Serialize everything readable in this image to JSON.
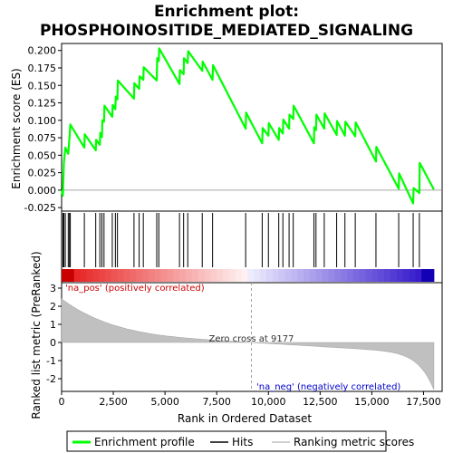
{
  "chart_data": {
    "type": "line",
    "title_line1": "Enrichment plot:",
    "title_line2": "PHOSPHOINOSITIDE_MEDIATED_SIGNALING",
    "xlabel": "Rank in Ordered Dataset",
    "ylabel_top": "Enrichment score (ES)",
    "ylabel_bottom": "Ranked list metric (PreRanked)",
    "xlim": [
      0,
      18400
    ],
    "es_ylim": [
      -0.03,
      0.21
    ],
    "metric_ylim": [
      -2.7,
      3.3
    ],
    "x_ticks": [
      0,
      2500,
      5000,
      7500,
      10000,
      12500,
      15000,
      17500
    ],
    "x_tick_labels": [
      "0",
      "2,500",
      "5,000",
      "7,500",
      "10,000",
      "12,500",
      "15,000",
      "17,500"
    ],
    "es_ticks": [
      -0.025,
      0.0,
      0.025,
      0.05,
      0.075,
      0.1,
      0.125,
      0.15,
      0.175,
      0.2
    ],
    "es_tick_labels": [
      "-0.025",
      "0.000",
      "0.025",
      "0.050",
      "0.075",
      "0.100",
      "0.125",
      "0.150",
      "0.175",
      "0.200"
    ],
    "metric_ticks": [
      -2,
      -1,
      0,
      1,
      2,
      3
    ],
    "metric_tick_labels": [
      "-2",
      "-1",
      "0",
      "1",
      "2",
      "3"
    ],
    "hits": [
      60,
      110,
      180,
      320,
      380,
      420,
      1100,
      1650,
      1850,
      1950,
      2050,
      2450,
      2600,
      2700,
      3500,
      3750,
      3950,
      4600,
      4700,
      5700,
      5900,
      6100,
      6800,
      7300,
      8900,
      9700,
      10000,
      10500,
      10700,
      11000,
      11200,
      12200,
      12300,
      12700,
      13300,
      13700,
      14200,
      15200,
      16300,
      17000,
      17300
    ],
    "es_points": [
      [
        0,
        0.0
      ],
      [
        60,
        -0.008
      ],
      [
        110,
        0.039
      ],
      [
        180,
        0.061
      ],
      [
        320,
        0.052
      ],
      [
        380,
        0.075
      ],
      [
        420,
        0.094
      ],
      [
        1100,
        0.061
      ],
      [
        1120,
        0.08
      ],
      [
        1650,
        0.057
      ],
      [
        1670,
        0.072
      ],
      [
        1850,
        0.065
      ],
      [
        1870,
        0.082
      ],
      [
        1950,
        0.076
      ],
      [
        1970,
        0.1
      ],
      [
        2050,
        0.098
      ],
      [
        2070,
        0.121
      ],
      [
        2450,
        0.105
      ],
      [
        2470,
        0.122
      ],
      [
        2600,
        0.116
      ],
      [
        2620,
        0.134
      ],
      [
        2700,
        0.13
      ],
      [
        2720,
        0.157
      ],
      [
        3500,
        0.131
      ],
      [
        3520,
        0.153
      ],
      [
        3750,
        0.145
      ],
      [
        3770,
        0.163
      ],
      [
        3950,
        0.158
      ],
      [
        3970,
        0.176
      ],
      [
        4600,
        0.157
      ],
      [
        4620,
        0.189
      ],
      [
        4700,
        0.185
      ],
      [
        4720,
        0.203
      ],
      [
        5700,
        0.152
      ],
      [
        5720,
        0.172
      ],
      [
        5900,
        0.166
      ],
      [
        5920,
        0.189
      ],
      [
        6100,
        0.182
      ],
      [
        6120,
        0.199
      ],
      [
        6800,
        0.171
      ],
      [
        6820,
        0.184
      ],
      [
        7300,
        0.158
      ],
      [
        7320,
        0.179
      ],
      [
        8900,
        0.088
      ],
      [
        8920,
        0.111
      ],
      [
        9700,
        0.067
      ],
      [
        9720,
        0.089
      ],
      [
        10000,
        0.078
      ],
      [
        10020,
        0.096
      ],
      [
        10500,
        0.072
      ],
      [
        10520,
        0.089
      ],
      [
        10700,
        0.081
      ],
      [
        10720,
        0.101
      ],
      [
        11000,
        0.088
      ],
      [
        11020,
        0.108
      ],
      [
        11200,
        0.102
      ],
      [
        11220,
        0.121
      ],
      [
        12200,
        0.067
      ],
      [
        12220,
        0.09
      ],
      [
        12300,
        0.086
      ],
      [
        12320,
        0.108
      ],
      [
        12700,
        0.088
      ],
      [
        12720,
        0.11
      ],
      [
        13300,
        0.079
      ],
      [
        13320,
        0.099
      ],
      [
        13700,
        0.078
      ],
      [
        13720,
        0.098
      ],
      [
        14200,
        0.077
      ],
      [
        14220,
        0.097
      ],
      [
        15200,
        0.041
      ],
      [
        15220,
        0.062
      ],
      [
        16300,
        0.002
      ],
      [
        16320,
        0.024
      ],
      [
        17000,
        -0.019
      ],
      [
        17020,
        0.003
      ],
      [
        17300,
        -0.004
      ],
      [
        17320,
        0.039
      ],
      [
        18000,
        0.001
      ]
    ],
    "zero_cross_label": "Zero cross at 9177",
    "zero_cross_x": 9177,
    "pos_label": "'na_pos' (positively correlated)",
    "neg_label": "'na_neg' (negatively correlated)",
    "legend": [
      "Enrichment profile",
      "Hits",
      "Ranking metric scores"
    ],
    "colors": {
      "es": "#00ff00",
      "hits": "#000000",
      "metric_fill": "#c0c0c0",
      "pos_text": "#cc0000",
      "neg_text": "#0000cc",
      "zero_line": "#a0a0a0"
    },
    "total_genes": 18000
  }
}
